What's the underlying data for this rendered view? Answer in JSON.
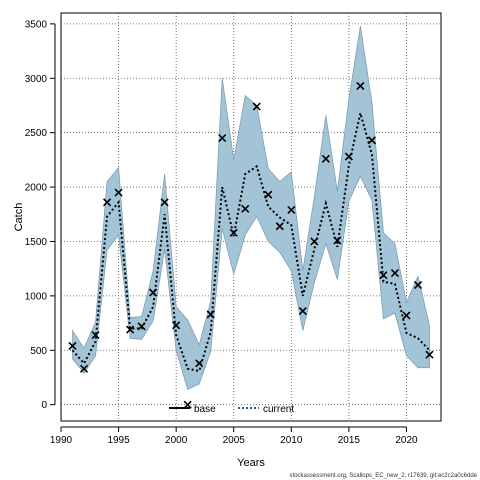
{
  "chart_data": {
    "type": "line",
    "xlabel": "Years",
    "ylabel": "Catch",
    "xlim": [
      1990,
      2023
    ],
    "ylim": [
      -150,
      3600
    ],
    "xticks": [
      1990,
      1995,
      2000,
      2005,
      2010,
      2015,
      2020
    ],
    "yticks": [
      0,
      500,
      1000,
      1500,
      2000,
      2500,
      3000,
      3500
    ],
    "grid": true,
    "legend_position": "bottom-center",
    "band_color": "#a3c3d6",
    "band_edge_color": "#7f9fb2",
    "series": [
      {
        "name": "base",
        "style": "solid",
        "color": "#000000",
        "x": [],
        "values": []
      },
      {
        "name": "current",
        "style": "dotted",
        "color": "#000000",
        "x": [
          1991,
          1992,
          1993,
          1994,
          1995,
          1996,
          1997,
          1998,
          1999,
          2000,
          2001,
          2002,
          2003,
          2004,
          2005,
          2006,
          2007,
          2008,
          2009,
          2010,
          2011,
          2012,
          2013,
          2014,
          2015,
          2016,
          2017,
          2018,
          2019,
          2020,
          2021,
          2022
        ],
        "values": [
          500,
          380,
          580,
          1730,
          1860,
          700,
          700,
          900,
          1750,
          640,
          330,
          310,
          670,
          2000,
          1550,
          2120,
          2190,
          1820,
          1720,
          1650,
          1000,
          1430,
          1850,
          1450,
          2200,
          2680,
          2300,
          1130,
          1110,
          660,
          610,
          500
        ],
        "band_upper": [
          680,
          520,
          760,
          2050,
          2180,
          800,
          810,
          1230,
          2120,
          900,
          780,
          550,
          950,
          3000,
          2250,
          2840,
          2750,
          2170,
          2050,
          2140,
          1230,
          1910,
          2660,
          1960,
          2810,
          3480,
          2780,
          1580,
          1480,
          940,
          1180,
          730
        ],
        "band_lower": [
          420,
          290,
          450,
          1420,
          1560,
          610,
          600,
          770,
          1430,
          500,
          140,
          190,
          490,
          1620,
          1200,
          1560,
          1730,
          1500,
          1400,
          1230,
          680,
          1120,
          1480,
          1150,
          1870,
          2100,
          1880,
          790,
          840,
          450,
          340,
          340
        ]
      }
    ],
    "observations": {
      "marker": "x",
      "x": [
        1991,
        1992,
        1993,
        1994,
        1995,
        1996,
        1997,
        1998,
        1999,
        2000,
        2001,
        2002,
        2003,
        2004,
        2005,
        2006,
        2007,
        2008,
        2009,
        2010,
        2011,
        2012,
        2013,
        2014,
        2015,
        2016,
        2017,
        2018,
        2019,
        2020,
        2021,
        2022
      ],
      "values": [
        540,
        330,
        640,
        1860,
        1950,
        690,
        720,
        1030,
        1860,
        730,
        0,
        380,
        830,
        2450,
        1580,
        1800,
        2740,
        1930,
        1640,
        1790,
        860,
        1500,
        2260,
        1510,
        2280,
        2930,
        2430,
        1190,
        1210,
        820,
        1100,
        460
      ]
    }
  },
  "footer": {
    "text": "stockassessment.org, Scallops_EC_new_2, r17639, git:ec2c2a0c6dde"
  }
}
